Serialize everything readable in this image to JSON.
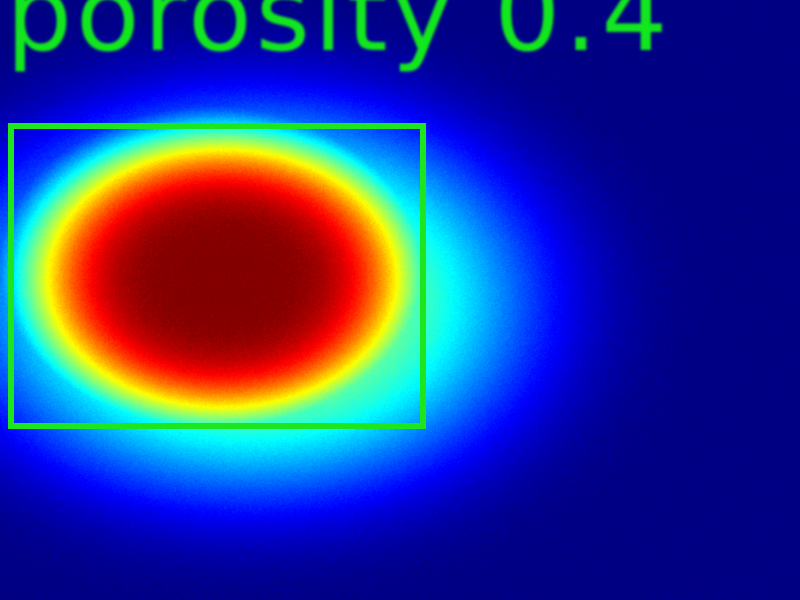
{
  "overlay": {
    "label": "porosity 0.4",
    "box_color": "#1ee61e",
    "text_color": "#12e61e"
  },
  "heatmap": {
    "colormap": "jet",
    "background": "#00008f"
  }
}
